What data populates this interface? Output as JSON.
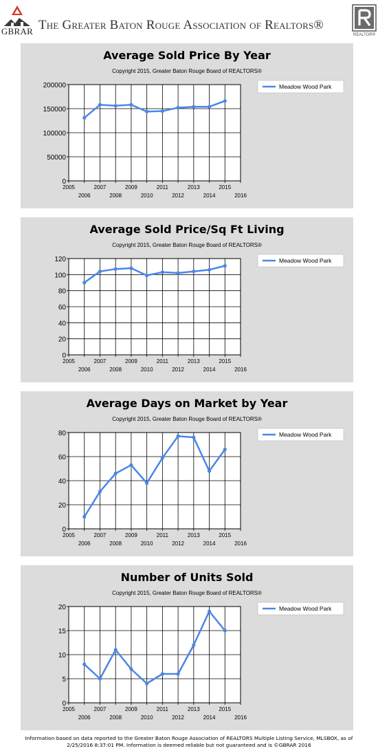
{
  "header": {
    "gbrar_logo_text": "GBRAR",
    "association_name": "The Greater Baton Rouge Association of Realtors®",
    "realtor_logo_text": "REALTOR®"
  },
  "chart_data": [
    {
      "type": "line",
      "title": "Average Sold Price By Year",
      "subtitle": "Copyright 2015, Greater Baton Rouge Board of REALTORS®",
      "legend": "top-right",
      "grid": true,
      "x": [
        2006,
        2007,
        2008,
        2009,
        2010,
        2011,
        2012,
        2013,
        2014,
        2015
      ],
      "xlim": [
        2005,
        2016
      ],
      "ylim": [
        0,
        200000
      ],
      "yticks": [
        "200000",
        "150000",
        "100000",
        "50000",
        "0"
      ],
      "xticks_top": [
        "2005",
        "2007",
        "2009",
        "2011",
        "2013",
        "2015"
      ],
      "xticks_bottom": [
        "2006",
        "2008",
        "2010",
        "2012",
        "2014",
        "2016"
      ],
      "series": [
        {
          "name": "Meadow Wood Park",
          "values": [
            131000,
            158000,
            156000,
            158000,
            144000,
            145000,
            152000,
            154000,
            154000,
            166000
          ]
        }
      ]
    },
    {
      "type": "line",
      "title": "Average Sold Price/Sq Ft Living",
      "subtitle": "Copyright 2015, Greater Baton Rouge Board of REALTORS®",
      "legend": "top-right",
      "grid": true,
      "x": [
        2006,
        2007,
        2008,
        2009,
        2010,
        2011,
        2012,
        2013,
        2014,
        2015
      ],
      "xlim": [
        2005,
        2016
      ],
      "ylim": [
        0,
        120
      ],
      "yticks": [
        "120",
        "100",
        "80",
        "60",
        "40",
        "20",
        "0"
      ],
      "xticks_top": [
        "2005",
        "2007",
        "2009",
        "2011",
        "2013",
        "2015"
      ],
      "xticks_bottom": [
        "2006",
        "2008",
        "2010",
        "2012",
        "2014",
        "2016"
      ],
      "series": [
        {
          "name": "Meadow Wood Park",
          "values": [
            90,
            104,
            107,
            108,
            99,
            103,
            102,
            104,
            106,
            111
          ]
        }
      ]
    },
    {
      "type": "line",
      "title": "Average Days on Market by Year",
      "subtitle": "Copyright 2015, Greater Baton Rouge Board of REALTORS®",
      "legend": "top-right",
      "grid": true,
      "x": [
        2006,
        2007,
        2008,
        2009,
        2010,
        2011,
        2012,
        2013,
        2014,
        2015
      ],
      "xlim": [
        2005,
        2016
      ],
      "ylim": [
        0,
        80
      ],
      "yticks": [
        "80",
        "60",
        "40",
        "20",
        "0"
      ],
      "xticks_top": [
        "2005",
        "2007",
        "2009",
        "2011",
        "2013",
        "2015"
      ],
      "xticks_bottom": [
        "2006",
        "2008",
        "2010",
        "2012",
        "2014",
        "2016"
      ],
      "series": [
        {
          "name": "Meadow Wood Park",
          "values": [
            10,
            31,
            46,
            53,
            38,
            59,
            77,
            76,
            48,
            66
          ]
        }
      ]
    },
    {
      "type": "line",
      "title": "Number of Units Sold",
      "subtitle": "Copyright 2015, Greater Baton Rouge Board of REALTORS®",
      "legend": "top-right",
      "grid": true,
      "x": [
        2006,
        2007,
        2008,
        2009,
        2010,
        2011,
        2012,
        2013,
        2014,
        2015
      ],
      "xlim": [
        2005,
        2016
      ],
      "ylim": [
        0,
        20
      ],
      "yticks": [
        "20",
        "15",
        "10",
        "5",
        "0"
      ],
      "xticks_top": [
        "2005",
        "2007",
        "2009",
        "2011",
        "2013",
        "2015"
      ],
      "xticks_bottom": [
        "2006",
        "2008",
        "2010",
        "2012",
        "2014",
        "2016"
      ],
      "series": [
        {
          "name": "Meadow Wood Park",
          "values": [
            8,
            5,
            11,
            7,
            4,
            6,
            6,
            12,
            19,
            15
          ]
        }
      ]
    }
  ],
  "colors": {
    "series_line": "#4a86e8",
    "panel_bg": "#dcdcdc",
    "logo_red": "#d9342b"
  },
  "footer": {
    "line1": "Information based on data reported to the Greater Baton Rouge Association of REALTORS Multiple Listing Service, MLSBOX, as of",
    "line2": "2/25/2016 8:37:01 PM. Information is deemed reliable but not guaranteed and is ©GBRAR 2016"
  }
}
